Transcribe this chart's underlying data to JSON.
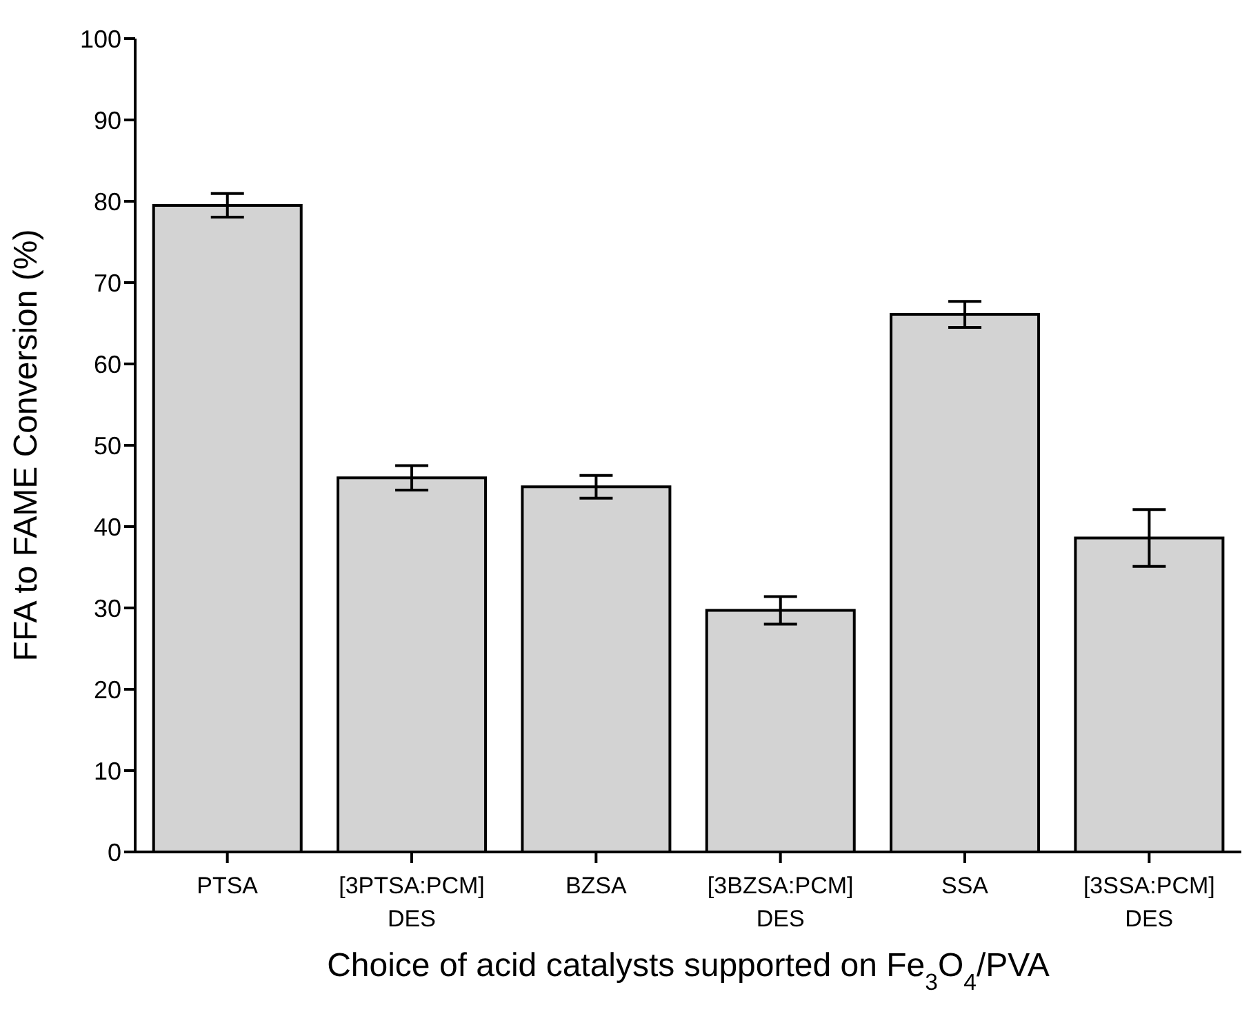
{
  "chart_data": {
    "type": "bar",
    "xlabel": "Choice of acid catalysts supported on Fe$_{3}$O$_{4}$/PVA",
    "ylabel": "FFA to FAME Conversion (%)",
    "categories": [
      "PTSA",
      "[3PTSA:PCM]\nDES",
      "BZSA",
      "[3BZSA:PCM]\nDES",
      "SSA",
      "[3SSA:PCM]\nDES"
    ],
    "values": [
      79.5,
      46,
      44.9,
      29.7,
      66.1,
      38.6
    ],
    "errors": [
      1.45,
      1.5,
      1.4,
      1.7,
      1.6,
      3.5
    ],
    "color": "#d3d3d3",
    "ylim": [
      0,
      100
    ],
    "yticks": [
      0,
      10,
      20,
      30,
      40,
      50,
      60,
      70,
      80,
      90,
      100
    ],
    "grid": false,
    "legend": false
  }
}
